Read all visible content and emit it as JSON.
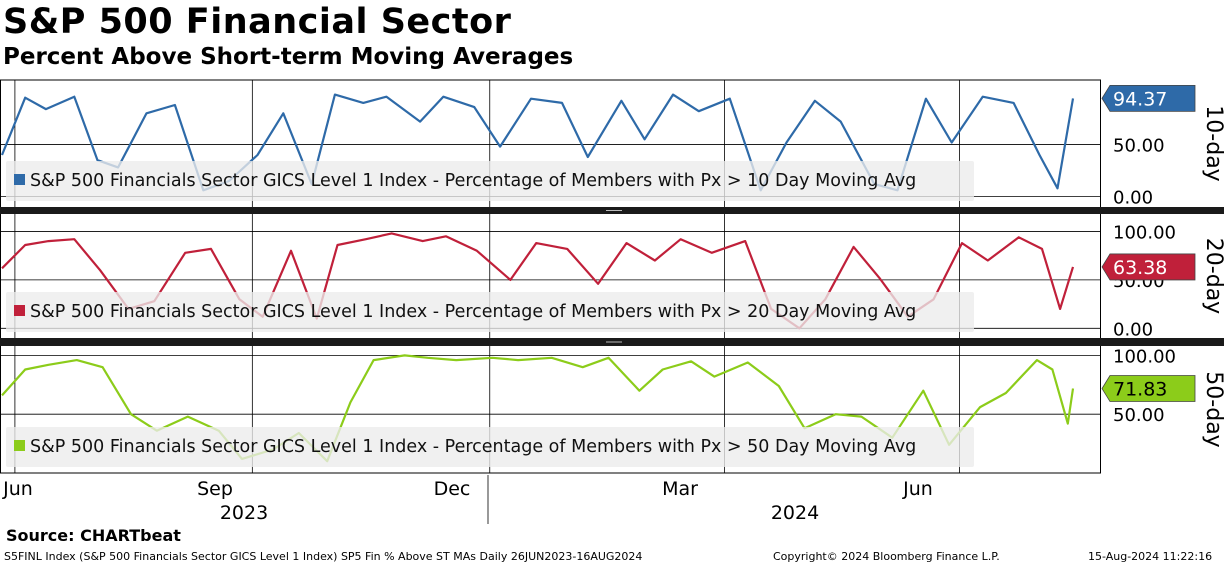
{
  "title": "S&P 500 Financial Sector",
  "subtitle": "Percent Above Short-term Moving Averages",
  "source": "Source: CHARTbeat",
  "footer": {
    "left": "S5FINL Index (S&P 500 Financials Sector GICS Level 1 Index) SP5 Fin % Above ST MAs  Daily 26JUN2023-16AUG2024",
    "center": "Copyright© 2024 Bloomberg Finance L.P.",
    "right": "15-Aug-2024 11:22:16"
  },
  "chart_data": [
    {
      "type": "line",
      "panel_label": "10-day",
      "legend": "S&P 500 Financials Sector GICS Level 1 Index - Percentage of Members with Px > 10 Day Moving Avg",
      "color": "#2e6aa8",
      "last_value_label": "94.37",
      "y_ticks": [
        "50.00",
        "0.00"
      ],
      "ylim": [
        -10,
        112
      ],
      "x": [
        "2023-06-26",
        "2023-07-05",
        "2023-07-13",
        "2023-07-24",
        "2023-08-02",
        "2023-08-10",
        "2023-08-21",
        "2023-09-01",
        "2023-09-12",
        "2023-09-22",
        "2023-10-03",
        "2023-10-13",
        "2023-10-24",
        "2023-11-02",
        "2023-11-13",
        "2023-11-22",
        "2023-12-05",
        "2023-12-14",
        "2023-12-26",
        "2024-01-05",
        "2024-01-17",
        "2024-01-29",
        "2024-02-08",
        "2024-02-21",
        "2024-03-01",
        "2024-03-12",
        "2024-03-22",
        "2024-04-03",
        "2024-04-15",
        "2024-04-25",
        "2024-05-06",
        "2024-05-16",
        "2024-05-29",
        "2024-06-07",
        "2024-06-18",
        "2024-06-28",
        "2024-07-10",
        "2024-07-22",
        "2024-08-01",
        "2024-08-08",
        "2024-08-14"
      ],
      "values": [
        40,
        95,
        84,
        96,
        35,
        28,
        80,
        88,
        6,
        15,
        40,
        80,
        12,
        98,
        90,
        96,
        72,
        96,
        86,
        48,
        94,
        90,
        38,
        92,
        55,
        98,
        82,
        94,
        6,
        52,
        92,
        72,
        12,
        6,
        94,
        52,
        96,
        90,
        40,
        8,
        94.37
      ]
    },
    {
      "type": "line",
      "panel_label": "20-day",
      "legend": "S&P 500 Financials Sector GICS Level 1 Index - Percentage of Members with Px > 20 Day Moving Avg",
      "color": "#c0203a",
      "last_value_label": "63.38",
      "y_ticks": [
        "100.00",
        "50.00",
        "0.00"
      ],
      "ylim": [
        -10,
        118
      ],
      "x": [
        "2023-06-26",
        "2023-07-05",
        "2023-07-14",
        "2023-07-24",
        "2023-08-03",
        "2023-08-14",
        "2023-08-24",
        "2023-09-05",
        "2023-09-15",
        "2023-09-26",
        "2023-10-05",
        "2023-10-16",
        "2023-10-26",
        "2023-11-03",
        "2023-11-14",
        "2023-11-24",
        "2023-12-06",
        "2023-12-15",
        "2023-12-27",
        "2024-01-09",
        "2024-01-19",
        "2024-01-31",
        "2024-02-12",
        "2024-02-23",
        "2024-03-05",
        "2024-03-15",
        "2024-03-27",
        "2024-04-09",
        "2024-04-19",
        "2024-04-30",
        "2024-05-10",
        "2024-05-21",
        "2024-05-31",
        "2024-06-11",
        "2024-06-21",
        "2024-07-02",
        "2024-07-12",
        "2024-07-24",
        "2024-08-02",
        "2024-08-09",
        "2024-08-14"
      ],
      "values": [
        62,
        86,
        90,
        92,
        60,
        20,
        28,
        78,
        82,
        30,
        12,
        80,
        10,
        86,
        92,
        98,
        90,
        95,
        80,
        50,
        88,
        82,
        46,
        88,
        70,
        92,
        78,
        90,
        20,
        0,
        30,
        84,
        52,
        12,
        30,
        88,
        70,
        94,
        82,
        20,
        63.38
      ]
    },
    {
      "type": "line",
      "panel_label": "50-day",
      "legend": "S&P 500 Financials Sector GICS Level 1 Index - Percentage of Members with Px > 50 Day Moving Avg",
      "color": "#8ccc1a",
      "last_value_label": "71.83",
      "y_ticks": [
        "100.00",
        "50.00"
      ],
      "ylim": [
        0,
        108
      ],
      "x": [
        "2023-06-26",
        "2023-07-05",
        "2023-07-14",
        "2023-07-25",
        "2023-08-04",
        "2023-08-15",
        "2023-08-25",
        "2023-09-06",
        "2023-09-18",
        "2023-09-27",
        "2023-10-09",
        "2023-10-19",
        "2023-10-30",
        "2023-11-08",
        "2023-11-17",
        "2023-11-29",
        "2023-12-08",
        "2023-12-19",
        "2024-01-02",
        "2024-01-12",
        "2024-01-25",
        "2024-02-06",
        "2024-02-16",
        "2024-02-28",
        "2024-03-08",
        "2024-03-19",
        "2024-03-28",
        "2024-04-10",
        "2024-04-22",
        "2024-05-02",
        "2024-05-14",
        "2024-05-24",
        "2024-06-05",
        "2024-06-17",
        "2024-06-27",
        "2024-07-09",
        "2024-07-19",
        "2024-07-31",
        "2024-08-06",
        "2024-08-12",
        "2024-08-14"
      ],
      "values": [
        66,
        88,
        92,
        96,
        90,
        50,
        36,
        48,
        36,
        12,
        20,
        34,
        10,
        60,
        96,
        100,
        98,
        96,
        98,
        96,
        98,
        90,
        98,
        70,
        88,
        95,
        82,
        94,
        74,
        38,
        50,
        48,
        30,
        70,
        24,
        56,
        68,
        96,
        88,
        42,
        71.83
      ]
    }
  ],
  "x_axis": {
    "month_labels": [
      "Jun",
      "Sep",
      "Dec",
      "Mar",
      "Jun"
    ],
    "year_labels": [
      "2023",
      "2024"
    ]
  }
}
